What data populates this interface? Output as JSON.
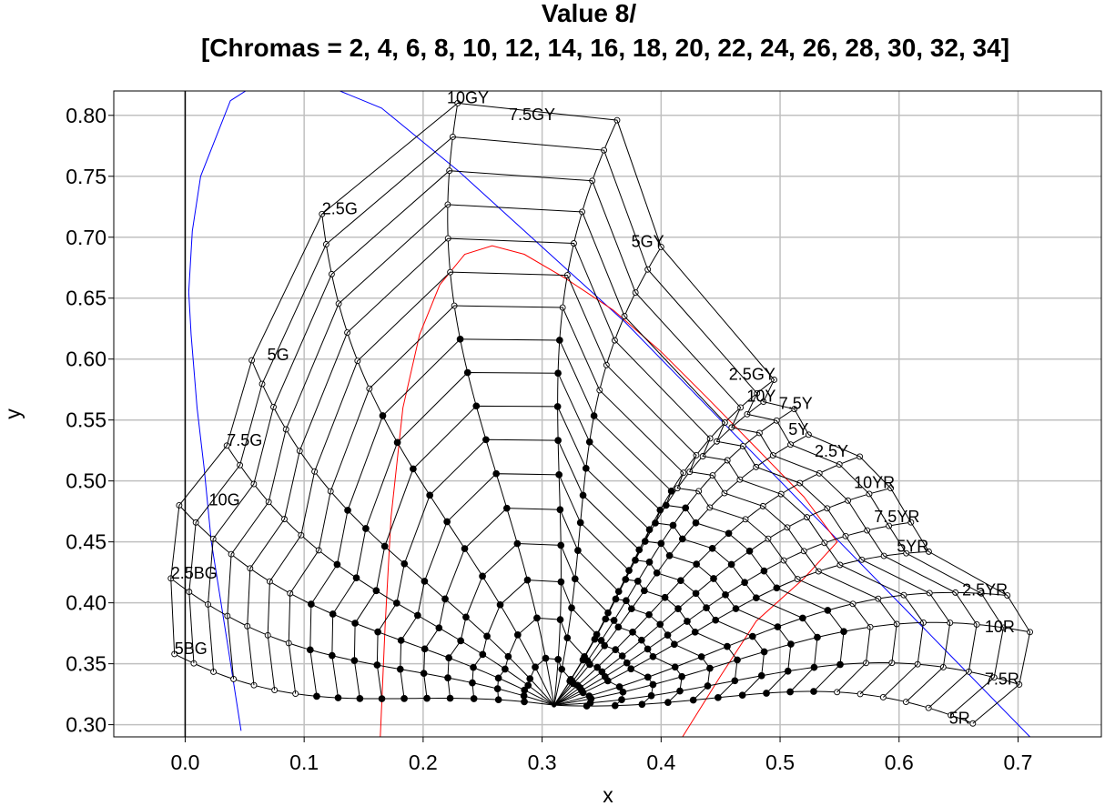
{
  "chart_data": {
    "type": "line",
    "title": "Value 8/",
    "subtitle": "[Chromas = 2, 4, 6, 8, 10, 12, 14, 16, 18, 20, 22, 24, 26, 28, 30, 32, 34]",
    "xlabel": "x",
    "ylabel": "y",
    "xlim": [
      -0.06,
      0.77
    ],
    "ylim": [
      0.29,
      0.82
    ],
    "x_ticks": [
      "0.0",
      "0.1",
      "0.2",
      "0.3",
      "0.4",
      "0.5",
      "0.6",
      "0.7"
    ],
    "y_ticks": [
      "0.30",
      "0.35",
      "0.40",
      "0.45",
      "0.50",
      "0.55",
      "0.60",
      "0.65",
      "0.70",
      "0.75",
      "0.80"
    ],
    "grid": true,
    "legend": "none",
    "white_point": [
      0.31,
      0.316
    ],
    "value": 8,
    "chromas": [
      2,
      4,
      6,
      8,
      10,
      12,
      14,
      16,
      18,
      20,
      22,
      24,
      26,
      28,
      30,
      32,
      34
    ],
    "hues": [
      {
        "name": "5R",
        "x": 0.662,
        "y": 0.301,
        "label_x": 0.642,
        "label_y": 0.301
      },
      {
        "name": "7.5R",
        "x": 0.701,
        "y": 0.333,
        "label_x": 0.672,
        "label_y": 0.333
      },
      {
        "name": "10R",
        "x": 0.71,
        "y": 0.376,
        "label_x": 0.672,
        "label_y": 0.376
      },
      {
        "name": "2.5YR",
        "x": 0.691,
        "y": 0.406,
        "label_x": 0.653,
        "label_y": 0.406
      },
      {
        "name": "5YR",
        "x": 0.625,
        "y": 0.442,
        "label_x": 0.598,
        "label_y": 0.442
      },
      {
        "name": "7.5YR",
        "x": 0.61,
        "y": 0.466,
        "label_x": 0.579,
        "label_y": 0.466
      },
      {
        "name": "10YR",
        "x": 0.593,
        "y": 0.494,
        "label_x": 0.562,
        "label_y": 0.494
      },
      {
        "name": "2.5Y",
        "x": 0.567,
        "y": 0.52,
        "label_x": 0.529,
        "label_y": 0.52
      },
      {
        "name": "5Y",
        "x": 0.524,
        "y": 0.538,
        "label_x": 0.507,
        "label_y": 0.538
      },
      {
        "name": "7.5Y",
        "x": 0.512,
        "y": 0.559,
        "label_x": 0.499,
        "label_y": 0.559
      },
      {
        "name": "10Y",
        "x": 0.486,
        "y": 0.565,
        "label_x": 0.472,
        "label_y": 0.565
      },
      {
        "name": "2.5GY",
        "x": 0.495,
        "y": 0.583,
        "label_x": 0.457,
        "label_y": 0.583
      },
      {
        "name": "5GY",
        "x": 0.4,
        "y": 0.692,
        "label_x": 0.375,
        "label_y": 0.692
      },
      {
        "name": "7.5GY",
        "x": 0.363,
        "y": 0.796,
        "label_x": 0.272,
        "label_y": 0.796
      },
      {
        "name": "10GY",
        "x": 0.229,
        "y": 0.81,
        "label_x": 0.22,
        "label_y": 0.81
      },
      {
        "name": "2.5G",
        "x": 0.115,
        "y": 0.719,
        "label_x": 0.115,
        "label_y": 0.719
      },
      {
        "name": "5G",
        "x": 0.056,
        "y": 0.599,
        "label_x": 0.069,
        "label_y": 0.599
      },
      {
        "name": "7.5G",
        "x": 0.035,
        "y": 0.529,
        "label_x": 0.035,
        "label_y": 0.529
      },
      {
        "name": "10G",
        "x": -0.005,
        "y": 0.48,
        "label_x": 0.02,
        "label_y": 0.48
      },
      {
        "name": "2.5BG",
        "x": -0.012,
        "y": 0.42,
        "label_x": -0.012,
        "label_y": 0.42
      },
      {
        "name": "5BG",
        "x": -0.009,
        "y": 0.358,
        "label_x": -0.009,
        "label_y": 0.358
      }
    ],
    "spectral_locus": [
      [
        0.047,
        0.295
      ],
      [
        0.035,
        0.37
      ],
      [
        0.022,
        0.45
      ],
      [
        0.016,
        0.51
      ],
      [
        0.01,
        0.56
      ],
      [
        0.005,
        0.62
      ],
      [
        0.003,
        0.655
      ],
      [
        0.006,
        0.705
      ],
      [
        0.013,
        0.75
      ],
      [
        0.038,
        0.812
      ],
      [
        0.07,
        0.832
      ],
      [
        0.115,
        0.826
      ],
      [
        0.165,
        0.806
      ],
      [
        0.23,
        0.754
      ],
      [
        0.3,
        0.692
      ],
      [
        0.37,
        0.63
      ],
      [
        0.44,
        0.56
      ],
      [
        0.52,
        0.48
      ],
      [
        0.6,
        0.4
      ],
      [
        0.64,
        0.36
      ],
      [
        0.71,
        0.29
      ]
    ],
    "macadam_limit": [
      [
        0.164,
        0.29
      ],
      [
        0.168,
        0.38
      ],
      [
        0.173,
        0.47
      ],
      [
        0.183,
        0.56
      ],
      [
        0.197,
        0.62
      ],
      [
        0.214,
        0.661
      ],
      [
        0.235,
        0.686
      ],
      [
        0.258,
        0.693
      ],
      [
        0.285,
        0.686
      ],
      [
        0.32,
        0.666
      ],
      [
        0.36,
        0.64
      ],
      [
        0.4,
        0.606
      ],
      [
        0.44,
        0.567
      ],
      [
        0.48,
        0.527
      ],
      [
        0.52,
        0.487
      ],
      [
        0.548,
        0.45
      ],
      [
        0.52,
        0.42
      ],
      [
        0.48,
        0.385
      ],
      [
        0.45,
        0.34
      ],
      [
        0.418,
        0.29
      ]
    ]
  }
}
